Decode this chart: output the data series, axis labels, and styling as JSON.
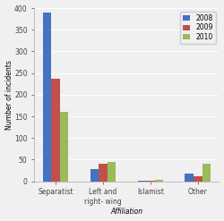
{
  "categories": [
    "Separatist",
    "Left and\nright- wing",
    "Islamist",
    "Other"
  ],
  "years": [
    "2008",
    "2009",
    "2010"
  ],
  "values": {
    "2008": [
      390,
      28,
      1,
      17
    ],
    "2009": [
      237,
      40,
      1,
      11
    ],
    "2010": [
      160,
      45,
      4,
      40
    ]
  },
  "colors": {
    "2008": "#4472C4",
    "2009": "#C0504D",
    "2010": "#9BBB59"
  },
  "ylabel": "Number of incidents",
  "xlabel": "Affiliation",
  "ylim": [
    0,
    400
  ],
  "yticks": [
    0,
    50,
    100,
    150,
    200,
    250,
    300,
    350,
    400
  ],
  "bar_width": 0.18,
  "figsize": [
    2.5,
    2.47
  ],
  "dpi": 100
}
